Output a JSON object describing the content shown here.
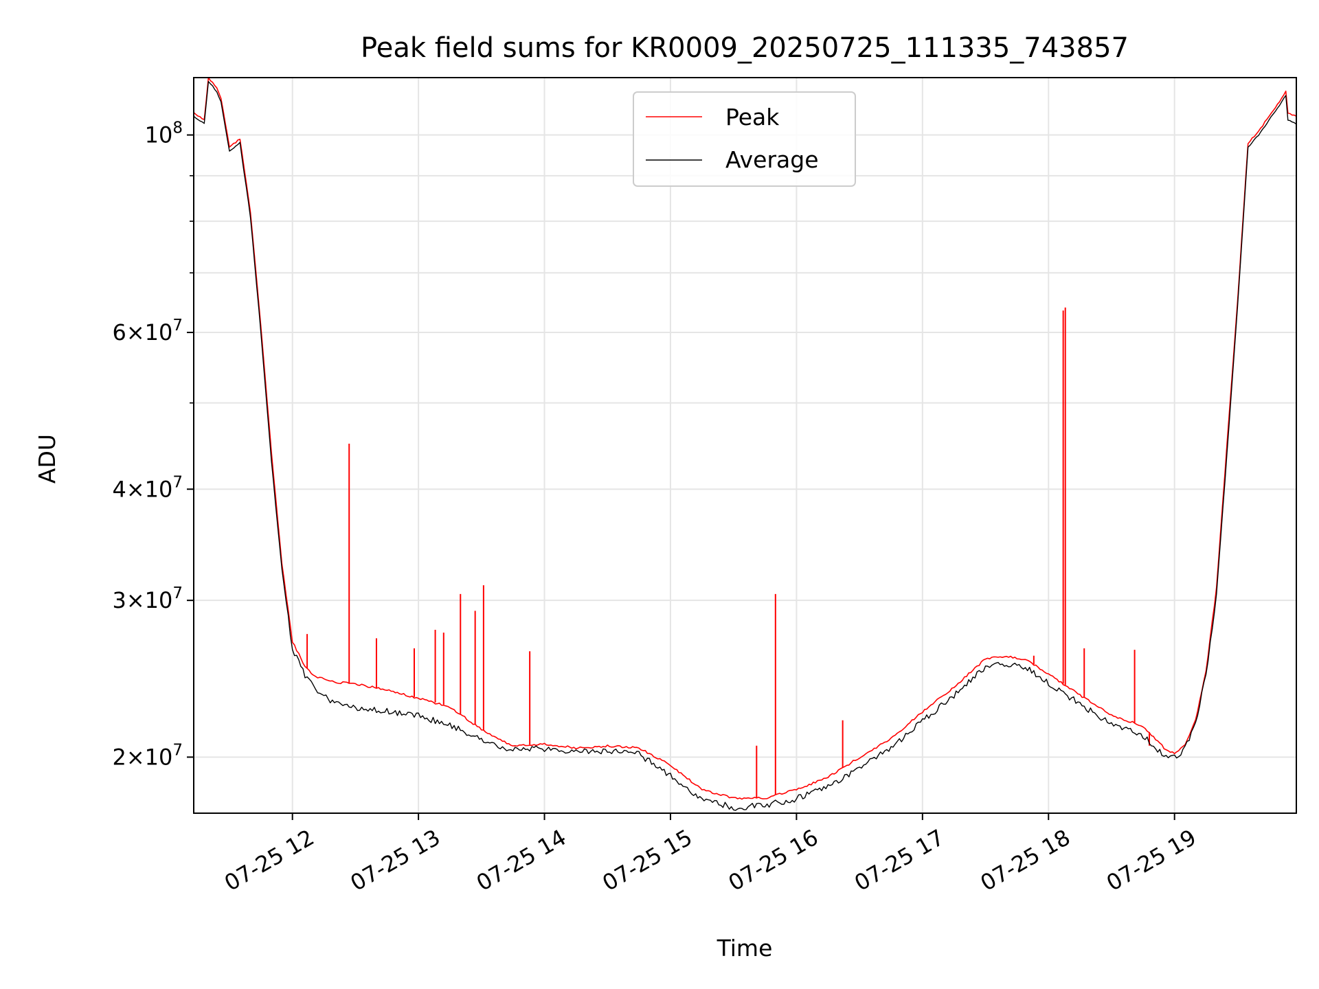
{
  "chart_data": {
    "type": "line",
    "title": "Peak field sums for KR0009_20250725_111335_743857",
    "xlabel": "Time",
    "ylabel": "ADU",
    "x_ticks": [
      "07-25 12",
      "07-25 13",
      "07-25 14",
      "07-25 15",
      "07-25 16",
      "07-25 17",
      "07-25 18",
      "07-25 19"
    ],
    "y_scale": "log",
    "y_ticks": [
      {
        "value": 20000000,
        "mant": "2",
        "exp": "7"
      },
      {
        "value": 30000000,
        "mant": "3",
        "exp": "7"
      },
      {
        "value": 40000000,
        "mant": "4",
        "exp": "7"
      },
      {
        "value": 60000000,
        "mant": "6",
        "exp": "7"
      },
      {
        "value": 100000000,
        "mant": "",
        "exp": "8"
      }
    ],
    "xlim": [
      "07-25 11:13",
      "07-25 19:58"
    ],
    "ylim": [
      17300000,
      116000000
    ],
    "grid": true,
    "legend_position": "upper center",
    "colors": {
      "Peak": "#ff0000",
      "Average": "#000000"
    },
    "series": [
      {
        "name": "Peak",
        "x": [
          "07-25 11:13",
          "07-25 11:18",
          "07-25 11:20",
          "07-25 11:24",
          "07-25 11:26",
          "07-25 11:30",
          "07-25 11:35",
          "07-25 11:40",
          "07-25 11:45",
          "07-25 11:50",
          "07-25 11:55",
          "07-25 12:00",
          "07-25 12:06",
          "07-25 12:10",
          "07-25 12:15",
          "07-25 12:20",
          "07-25 12:30",
          "07-25 12:45",
          "07-25 13:00",
          "07-25 13:15",
          "07-25 13:30",
          "07-25 13:45",
          "07-25 14:00",
          "07-25 14:15",
          "07-25 14:30",
          "07-25 14:45",
          "07-25 15:00",
          "07-25 15:15",
          "07-25 15:30",
          "07-25 15:45",
          "07-25 16:00",
          "07-25 16:15",
          "07-25 16:30",
          "07-25 16:45",
          "07-25 17:00",
          "07-25 17:15",
          "07-25 17:30",
          "07-25 17:40",
          "07-25 17:50",
          "07-25 18:00",
          "07-25 18:15",
          "07-25 18:30",
          "07-25 18:45",
          "07-25 18:55",
          "07-25 19:00",
          "07-25 19:05",
          "07-25 19:10",
          "07-25 19:15",
          "07-25 19:20",
          "07-25 19:25",
          "07-25 19:30",
          "07-25 19:35",
          "07-25 19:40",
          "07-25 19:45",
          "07-25 19:50",
          "07-25 19:53",
          "07-25 19:54",
          "07-25 19:58"
        ],
        "y": [
          106000000,
          104000000,
          116000000,
          113000000,
          110000000,
          97000000,
          99000000,
          82000000,
          61000000,
          44000000,
          33000000,
          27000000,
          25300000,
          24700000,
          24500000,
          24300000,
          24200000,
          23800000,
          23300000,
          22800000,
          21500000,
          20600000,
          20700000,
          20500000,
          20600000,
          20500000,
          19600000,
          18400000,
          18000000,
          18000000,
          18400000,
          19000000,
          20000000,
          21000000,
          22500000,
          24000000,
          25800000,
          26000000,
          25700000,
          24800000,
          23500000,
          22300000,
          21700000,
          20500000,
          20200000,
          20700000,
          22000000,
          25000000,
          31000000,
          45000000,
          65000000,
          98000000,
          101000000,
          105000000,
          109000000,
          112000000,
          106000000,
          105000000
        ],
        "spikes": [
          {
            "x": "07-25 12:27",
            "y": 45000000
          },
          {
            "x": "07-25 12:07",
            "y": 27500000
          },
          {
            "x": "07-25 12:40",
            "y": 27200000
          },
          {
            "x": "07-25 12:58",
            "y": 26500000
          },
          {
            "x": "07-25 13:08",
            "y": 27800000
          },
          {
            "x": "07-25 13:12",
            "y": 27600000
          },
          {
            "x": "07-25 13:20",
            "y": 30500000
          },
          {
            "x": "07-25 13:27",
            "y": 29200000
          },
          {
            "x": "07-25 13:31",
            "y": 31200000
          },
          {
            "x": "07-25 13:53",
            "y": 26300000
          },
          {
            "x": "07-25 15:41",
            "y": 20600000
          },
          {
            "x": "07-25 15:50",
            "y": 30500000
          },
          {
            "x": "07-25 16:22",
            "y": 22000000
          },
          {
            "x": "07-25 17:53",
            "y": 26000000
          },
          {
            "x": "07-25 18:07",
            "y": 63500000
          },
          {
            "x": "07-25 18:08",
            "y": 64000000
          },
          {
            "x": "07-25 18:17",
            "y": 26500000
          },
          {
            "x": "07-25 18:41",
            "y": 26400000
          },
          {
            "x": "07-25 18:48",
            "y": 20600000
          }
        ]
      },
      {
        "name": "Average",
        "x": [
          "07-25 11:13",
          "07-25 11:18",
          "07-25 11:20",
          "07-25 11:24",
          "07-25 11:26",
          "07-25 11:30",
          "07-25 11:35",
          "07-25 11:40",
          "07-25 11:45",
          "07-25 11:50",
          "07-25 11:55",
          "07-25 12:00",
          "07-25 12:06",
          "07-25 12:10",
          "07-25 12:15",
          "07-25 12:20",
          "07-25 12:30",
          "07-25 12:45",
          "07-25 13:00",
          "07-25 13:15",
          "07-25 13:30",
          "07-25 13:45",
          "07-25 14:00",
          "07-25 14:15",
          "07-25 14:30",
          "07-25 14:45",
          "07-25 15:00",
          "07-25 15:15",
          "07-25 15:30",
          "07-25 15:45",
          "07-25 16:00",
          "07-25 16:15",
          "07-25 16:30",
          "07-25 16:45",
          "07-25 17:00",
          "07-25 17:15",
          "07-25 17:30",
          "07-25 17:40",
          "07-25 17:50",
          "07-25 18:00",
          "07-25 18:15",
          "07-25 18:30",
          "07-25 18:45",
          "07-25 18:55",
          "07-25 19:00",
          "07-25 19:05",
          "07-25 19:10",
          "07-25 19:15",
          "07-25 19:20",
          "07-25 19:25",
          "07-25 19:30",
          "07-25 19:35",
          "07-25 19:40",
          "07-25 19:45",
          "07-25 19:50",
          "07-25 19:53",
          "07-25 19:54",
          "07-25 19:58"
        ],
        "y": [
          105000000,
          103000000,
          115000000,
          112000000,
          109000000,
          96000000,
          98000000,
          81000000,
          60000000,
          43000000,
          32500000,
          26500000,
          24800000,
          24000000,
          23500000,
          23000000,
          22800000,
          22600000,
          22300000,
          21800000,
          21000000,
          20400000,
          20500000,
          20300000,
          20400000,
          20200000,
          19100000,
          18000000,
          17600000,
          17700000,
          18000000,
          18600000,
          19500000,
          20500000,
          22000000,
          23500000,
          25300000,
          25500000,
          25200000,
          24300000,
          23000000,
          21800000,
          21200000,
          20100000,
          20000000,
          20500000,
          21800000,
          24800000,
          30500000,
          44000000,
          64000000,
          97000000,
          100000000,
          104000000,
          108000000,
          111000000,
          104000000,
          103000000
        ]
      }
    ]
  }
}
